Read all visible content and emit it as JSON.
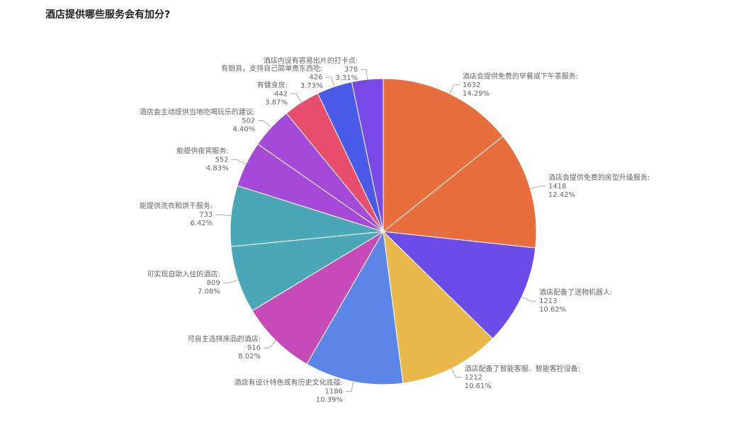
{
  "title": "酒店提供哪些服务会有加分?",
  "chart_data": {
    "type": "pie",
    "title": "酒店提供哪些服务会有加分?",
    "start_angle_deg": 0,
    "direction": "clockwise",
    "slices": [
      {
        "label": "酒店会提供免费的早餐或下午茶服务:",
        "value": 1632,
        "percent": "14.29%",
        "color": "#e86f3d"
      },
      {
        "label": "酒店会提供免费的房型升级服务:",
        "value": 1418,
        "percent": "12.42%",
        "color": "#e86f3d"
      },
      {
        "label": "酒店配备了送物机器人:",
        "value": 1213,
        "percent": "10.62%",
        "color": "#6b4ce8"
      },
      {
        "label": "酒店配备了智能客服、智能客控设备:",
        "value": 1212,
        "percent": "10.61%",
        "color": "#e8b94a"
      },
      {
        "label": "酒店有设计特色或有历史文化底蕴:",
        "value": 1186,
        "percent": "10.39%",
        "color": "#5b86e8"
      },
      {
        "label": "可自主选择床品的酒店:",
        "value": 916,
        "percent": "8.02%",
        "color": "#c64bb8"
      },
      {
        "label": "可实现自助入住的酒店:",
        "value": 809,
        "percent": "7.08%",
        "color": "#4aa7b8"
      },
      {
        "label": "能提供洗衣和烘干服务:",
        "value": 733,
        "percent": "6.42%",
        "color": "#4aa7b8"
      },
      {
        "label": "能提供夜宵服务:",
        "value": 552,
        "percent": "4.83%",
        "color": "#a54ad8"
      },
      {
        "label": "酒店会主动提供当地吃喝玩乐的建议:",
        "value": 502,
        "percent": "4.40%",
        "color": "#a54ad8"
      },
      {
        "label": "有健身房:",
        "value": 442,
        "percent": "3.87%",
        "color": "#e84d6b"
      },
      {
        "label": "有厨具，支持自己简单煮东西吃:",
        "value": 426,
        "percent": "3.73%",
        "color": "#4a5ae8"
      },
      {
        "label": "酒店内设有容易出片的打卡点:",
        "value": 378,
        "percent": "3.31%",
        "color": "#7a4ae8"
      }
    ]
  }
}
